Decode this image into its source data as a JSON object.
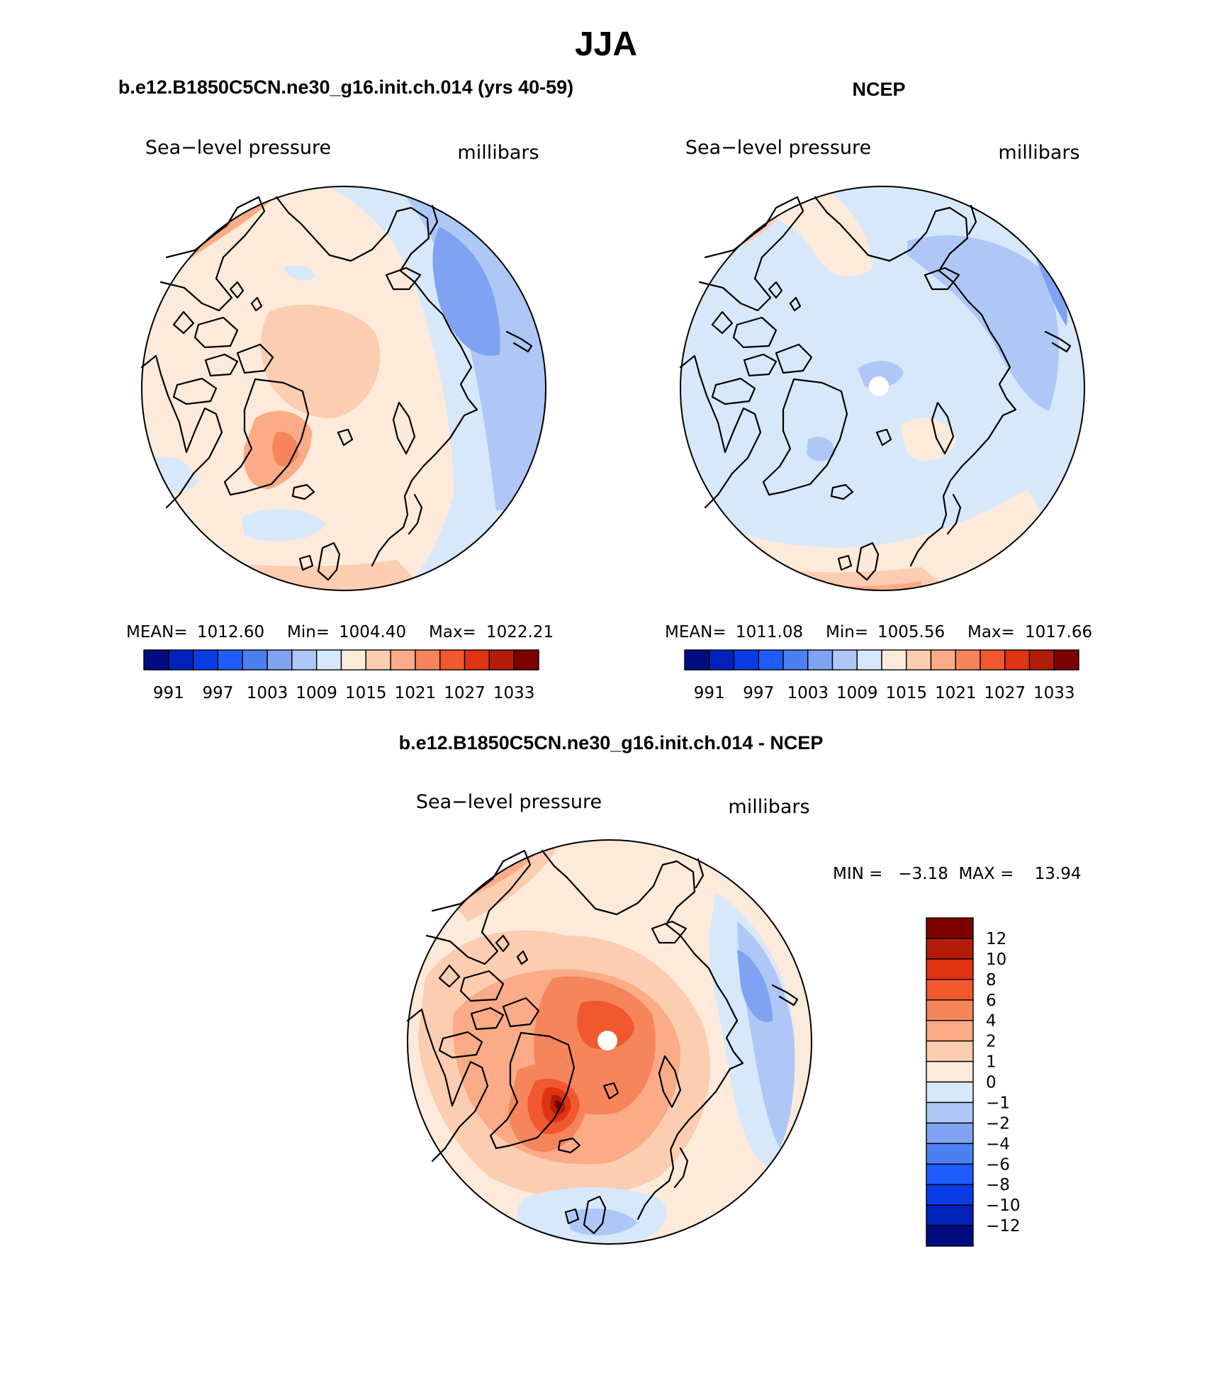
{
  "page_title": "JJA",
  "colors": {
    "abs_scale": [
      "#000d80",
      "#0022b8",
      "#0a3ce6",
      "#1f5cff",
      "#4b7ff2",
      "#7fa2f2",
      "#afc7f6",
      "#d7e8fb",
      "#fdeadb",
      "#fccdb0",
      "#fbab86",
      "#f6855c",
      "#f1582d",
      "#e13212",
      "#b31d08",
      "#7c0202"
    ],
    "diff_scale": [
      "#7c0202",
      "#b31d08",
      "#e13212",
      "#f1582d",
      "#f6855c",
      "#fbab86",
      "#fccdb0",
      "#fdeadb",
      "#d7e8fb",
      "#afc7f6",
      "#7fa2f2",
      "#4b7ff2",
      "#1f5cff",
      "#0a3ce6",
      "#0022b8",
      "#000d80"
    ]
  },
  "panels": {
    "model": {
      "header": "b.e12.B1850C5CN.ne30_g16.init.ch.014 (yrs 40-59)",
      "variable": "Sea−level pressure",
      "units": "millibars",
      "mean_label": "MEAN=",
      "mean": "1012.60",
      "min_label": "Min=",
      "min": "1004.40",
      "max_label": "Max=",
      "max": "1022.21",
      "colorbar_ticks": [
        "991",
        "997",
        "1003",
        "1009",
        "1015",
        "1021",
        "1027",
        "1033"
      ]
    },
    "obs": {
      "header": "NCEP",
      "variable": "Sea−level pressure",
      "units": "millibars",
      "mean_label": "MEAN=",
      "mean": "1011.08",
      "min_label": "Min=",
      "min": "1005.56",
      "max_label": "Max=",
      "max": "1017.66",
      "colorbar_ticks": [
        "991",
        "997",
        "1003",
        "1009",
        "1015",
        "1021",
        "1027",
        "1033"
      ]
    },
    "diff": {
      "header": "b.e12.B1850C5CN.ne30_g16.init.ch.014 - NCEP",
      "variable": "Sea−level pressure",
      "units": "millibars",
      "minmax": "MIN =   −3.18  MAX =    13.94",
      "colorbar_ticks": [
        "12",
        "10",
        "8",
        "6",
        "4",
        "2",
        "1",
        "0",
        "−1",
        "−2",
        "−4",
        "−6",
        "−8",
        "−10",
        "−12"
      ]
    }
  }
}
